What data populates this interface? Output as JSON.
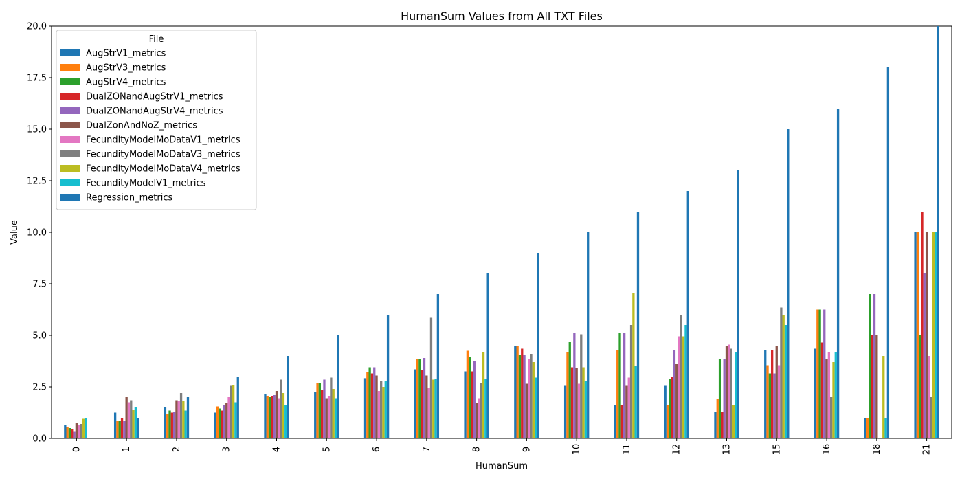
{
  "chart_data": {
    "type": "bar",
    "title": "HumanSum Values from All TXT Files",
    "xlabel": "HumanSum",
    "ylabel": "Value",
    "ylim": [
      0,
      20
    ],
    "yticks": [
      "0.0",
      "2.5",
      "5.0",
      "7.5",
      "10.0",
      "12.5",
      "15.0",
      "17.5",
      "20.0"
    ],
    "grid": false,
    "legend_title": "File",
    "legend_position": "top-left",
    "categories": [
      "0",
      "1",
      "2",
      "3",
      "4",
      "5",
      "6",
      "7",
      "8",
      "9",
      "10",
      "11",
      "12",
      "13",
      "15",
      "16",
      "18",
      "21"
    ],
    "series": [
      {
        "name": "AugStrV1_metrics",
        "color": "#1f77b4",
        "values": [
          0.65,
          1.25,
          1.5,
          1.25,
          2.15,
          2.25,
          2.92,
          3.35,
          3.25,
          4.5,
          2.55,
          1.6,
          2.55,
          1.3,
          4.3,
          4.35,
          1.0,
          10.0
        ]
      },
      {
        "name": "AugStrV3_metrics",
        "color": "#ff7f0e",
        "values": [
          0.55,
          0.85,
          1.2,
          1.55,
          2.05,
          2.7,
          3.2,
          3.85,
          4.25,
          4.5,
          4.2,
          4.3,
          1.6,
          1.9,
          3.55,
          6.25,
          1.0,
          10.0
        ]
      },
      {
        "name": "AugStrV4_metrics",
        "color": "#2ca02c",
        "values": [
          0.5,
          0.85,
          1.35,
          1.45,
          2.0,
          2.7,
          3.45,
          3.85,
          3.95,
          4.05,
          4.7,
          5.1,
          2.9,
          3.85,
          3.15,
          6.25,
          7.0,
          5.0
        ]
      },
      {
        "name": "DualZONandAugStrV1_metrics",
        "color": "#d62728",
        "values": [
          0.45,
          1.0,
          1.25,
          1.35,
          2.05,
          2.35,
          3.15,
          3.3,
          3.25,
          4.35,
          3.45,
          1.6,
          3.0,
          1.3,
          4.3,
          4.65,
          5.0,
          11.0
        ]
      },
      {
        "name": "DualZONandAugStrV4_metrics",
        "color": "#9467bd",
        "values": [
          0.35,
          0.85,
          1.3,
          1.6,
          2.1,
          2.85,
          3.45,
          3.9,
          3.75,
          4.05,
          5.1,
          5.1,
          4.3,
          3.85,
          3.15,
          6.25,
          7.0,
          8.0
        ]
      },
      {
        "name": "DualZonAndNoZ_metrics",
        "color": "#8c564b",
        "values": [
          0.75,
          2.0,
          1.85,
          1.7,
          2.3,
          1.95,
          3.05,
          3.05,
          1.7,
          2.65,
          3.4,
          2.55,
          3.6,
          4.5,
          4.5,
          3.85,
          5.0,
          10.0
        ]
      },
      {
        "name": "FecundityModelMoDataV1_metrics",
        "color": "#e377c2",
        "values": [
          0.65,
          1.75,
          1.8,
          2.0,
          1.95,
          2.05,
          2.3,
          2.45,
          1.95,
          3.85,
          2.65,
          2.95,
          4.95,
          4.55,
          3.55,
          4.2,
          null,
          4.0
        ]
      },
      {
        "name": "FecundityModelMoDataV3_metrics",
        "color": "#7f7f7f",
        "values": [
          0.7,
          1.85,
          2.2,
          2.55,
          2.85,
          2.95,
          2.8,
          5.85,
          2.7,
          4.1,
          5.05,
          5.5,
          6.0,
          4.35,
          6.35,
          2.0,
          null,
          2.0
        ]
      },
      {
        "name": "FecundityModelMoDataV4_metrics",
        "color": "#bcbd22",
        "values": [
          0.95,
          1.4,
          1.8,
          2.6,
          2.2,
          2.4,
          2.5,
          2.85,
          4.2,
          3.7,
          3.45,
          7.05,
          4.95,
          1.6,
          6.0,
          3.7,
          4.0,
          10.0
        ]
      },
      {
        "name": "FecundityModelV1_metrics",
        "color": "#17becf",
        "values": [
          1.0,
          1.5,
          1.35,
          1.75,
          1.6,
          1.95,
          2.8,
          2.9,
          2.9,
          2.95,
          2.8,
          3.5,
          5.5,
          4.2,
          5.5,
          4.2,
          1.0,
          10.0
        ]
      },
      {
        "name": "Regression_metrics",
        "color": "#1f77b4",
        "values": [
          null,
          1.0,
          2.0,
          3.0,
          4.0,
          5.0,
          6.0,
          7.0,
          8.0,
          9.0,
          10.0,
          11.0,
          12.0,
          13.0,
          15.0,
          16.0,
          18.0,
          21.0
        ]
      }
    ]
  }
}
